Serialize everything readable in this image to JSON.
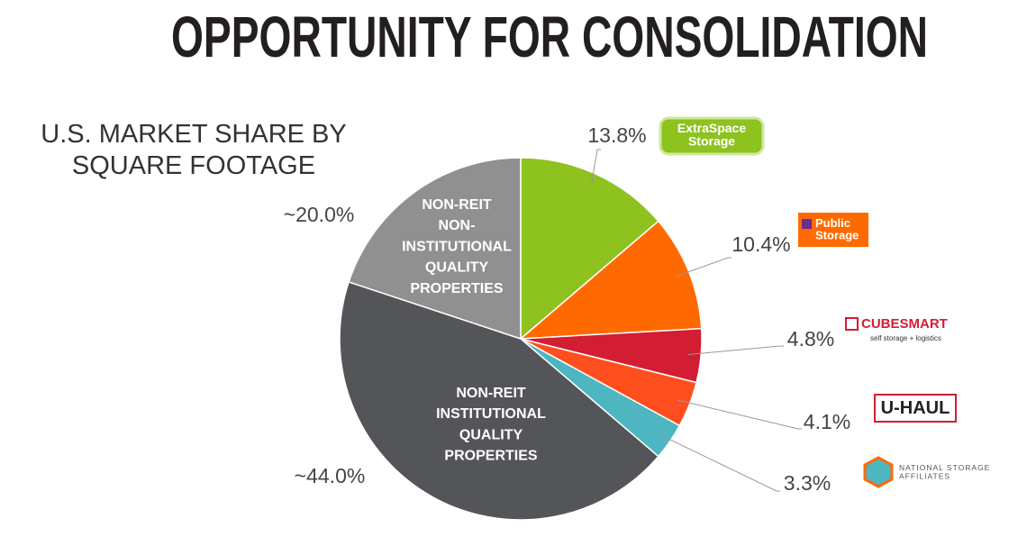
{
  "chart_data": {
    "type": "pie",
    "title": "OPPORTUNITY FOR CONSOLIDATION",
    "subtitle": "U.S. MARKET SHARE BY\nSQUARE FOOTAGE",
    "categories": [
      "ExtraSpace\nStorage",
      "Public\nStorage",
      "CUBESMART\nself storage + logistics",
      "U-HAUL",
      "NATIONAL STORAGE\nAFFILIATES",
      "NON-REIT\nINSTITUTIONAL\nQUALITY\nPROPERTIES",
      "NON-REIT\nNON-\nINSTITUTIONAL\nQUALITY\nPROPERTIES"
    ],
    "values": [
      13.8,
      10.4,
      4.8,
      4.1,
      3.3,
      44.0,
      20.0
    ],
    "value_labels": [
      "13.8%",
      "10.4%",
      "4.8%",
      "4.1%",
      "3.3%",
      "~44.0%",
      "~20.0%"
    ],
    "colors": [
      "#8dc21f",
      "#ff6a00",
      "#d21d33",
      "#ff4f1f",
      "#4db6c1",
      "#545559",
      "#909090"
    ]
  }
}
